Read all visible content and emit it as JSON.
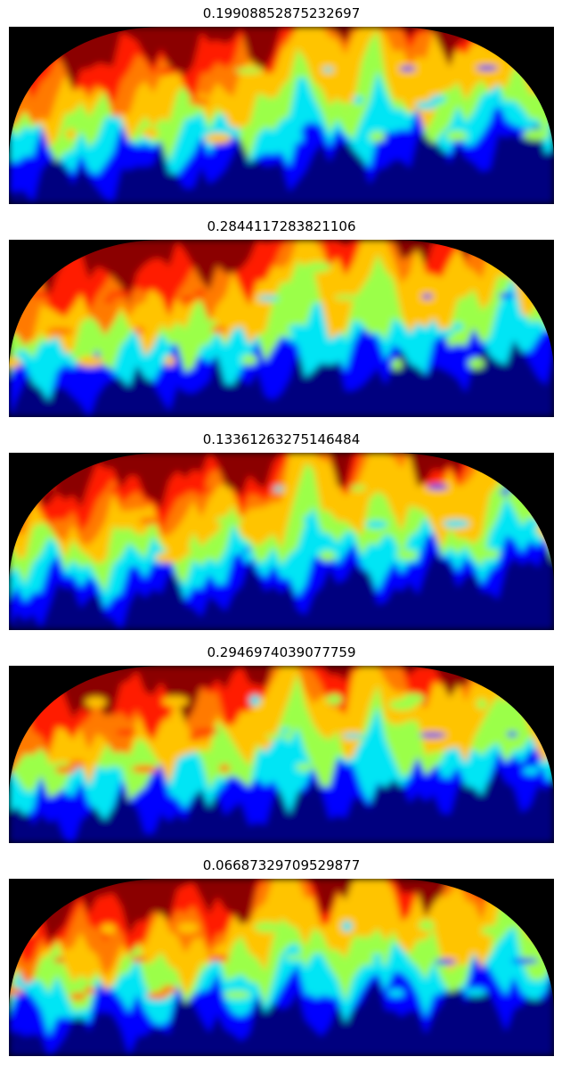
{
  "chart_data": [
    {
      "type": "heatmap",
      "title": "0.19908852875232697",
      "colormap": "jet",
      "axes_visible": false,
      "masked_corners": "black",
      "grid": false
    },
    {
      "type": "heatmap",
      "title": "0.2844117283821106",
      "colormap": "jet",
      "axes_visible": false,
      "masked_corners": "black",
      "grid": false
    },
    {
      "type": "heatmap",
      "title": "0.13361263275146484",
      "colormap": "jet",
      "axes_visible": false,
      "masked_corners": "black",
      "grid": false
    },
    {
      "type": "heatmap",
      "title": "0.2946974039077759",
      "colormap": "jet",
      "axes_visible": false,
      "masked_corners": "black",
      "grid": false
    },
    {
      "type": "heatmap",
      "title": "0.06687329709529877",
      "colormap": "jet",
      "axes_visible": false,
      "masked_corners": "black",
      "grid": false
    }
  ],
  "colors": {
    "jet": [
      "#00007f",
      "#0000ff",
      "#00e5f5",
      "#9bff4a",
      "#ffc400",
      "#ff7a00",
      "#ff1a00",
      "#8b0000"
    ],
    "mask": "#000000"
  }
}
